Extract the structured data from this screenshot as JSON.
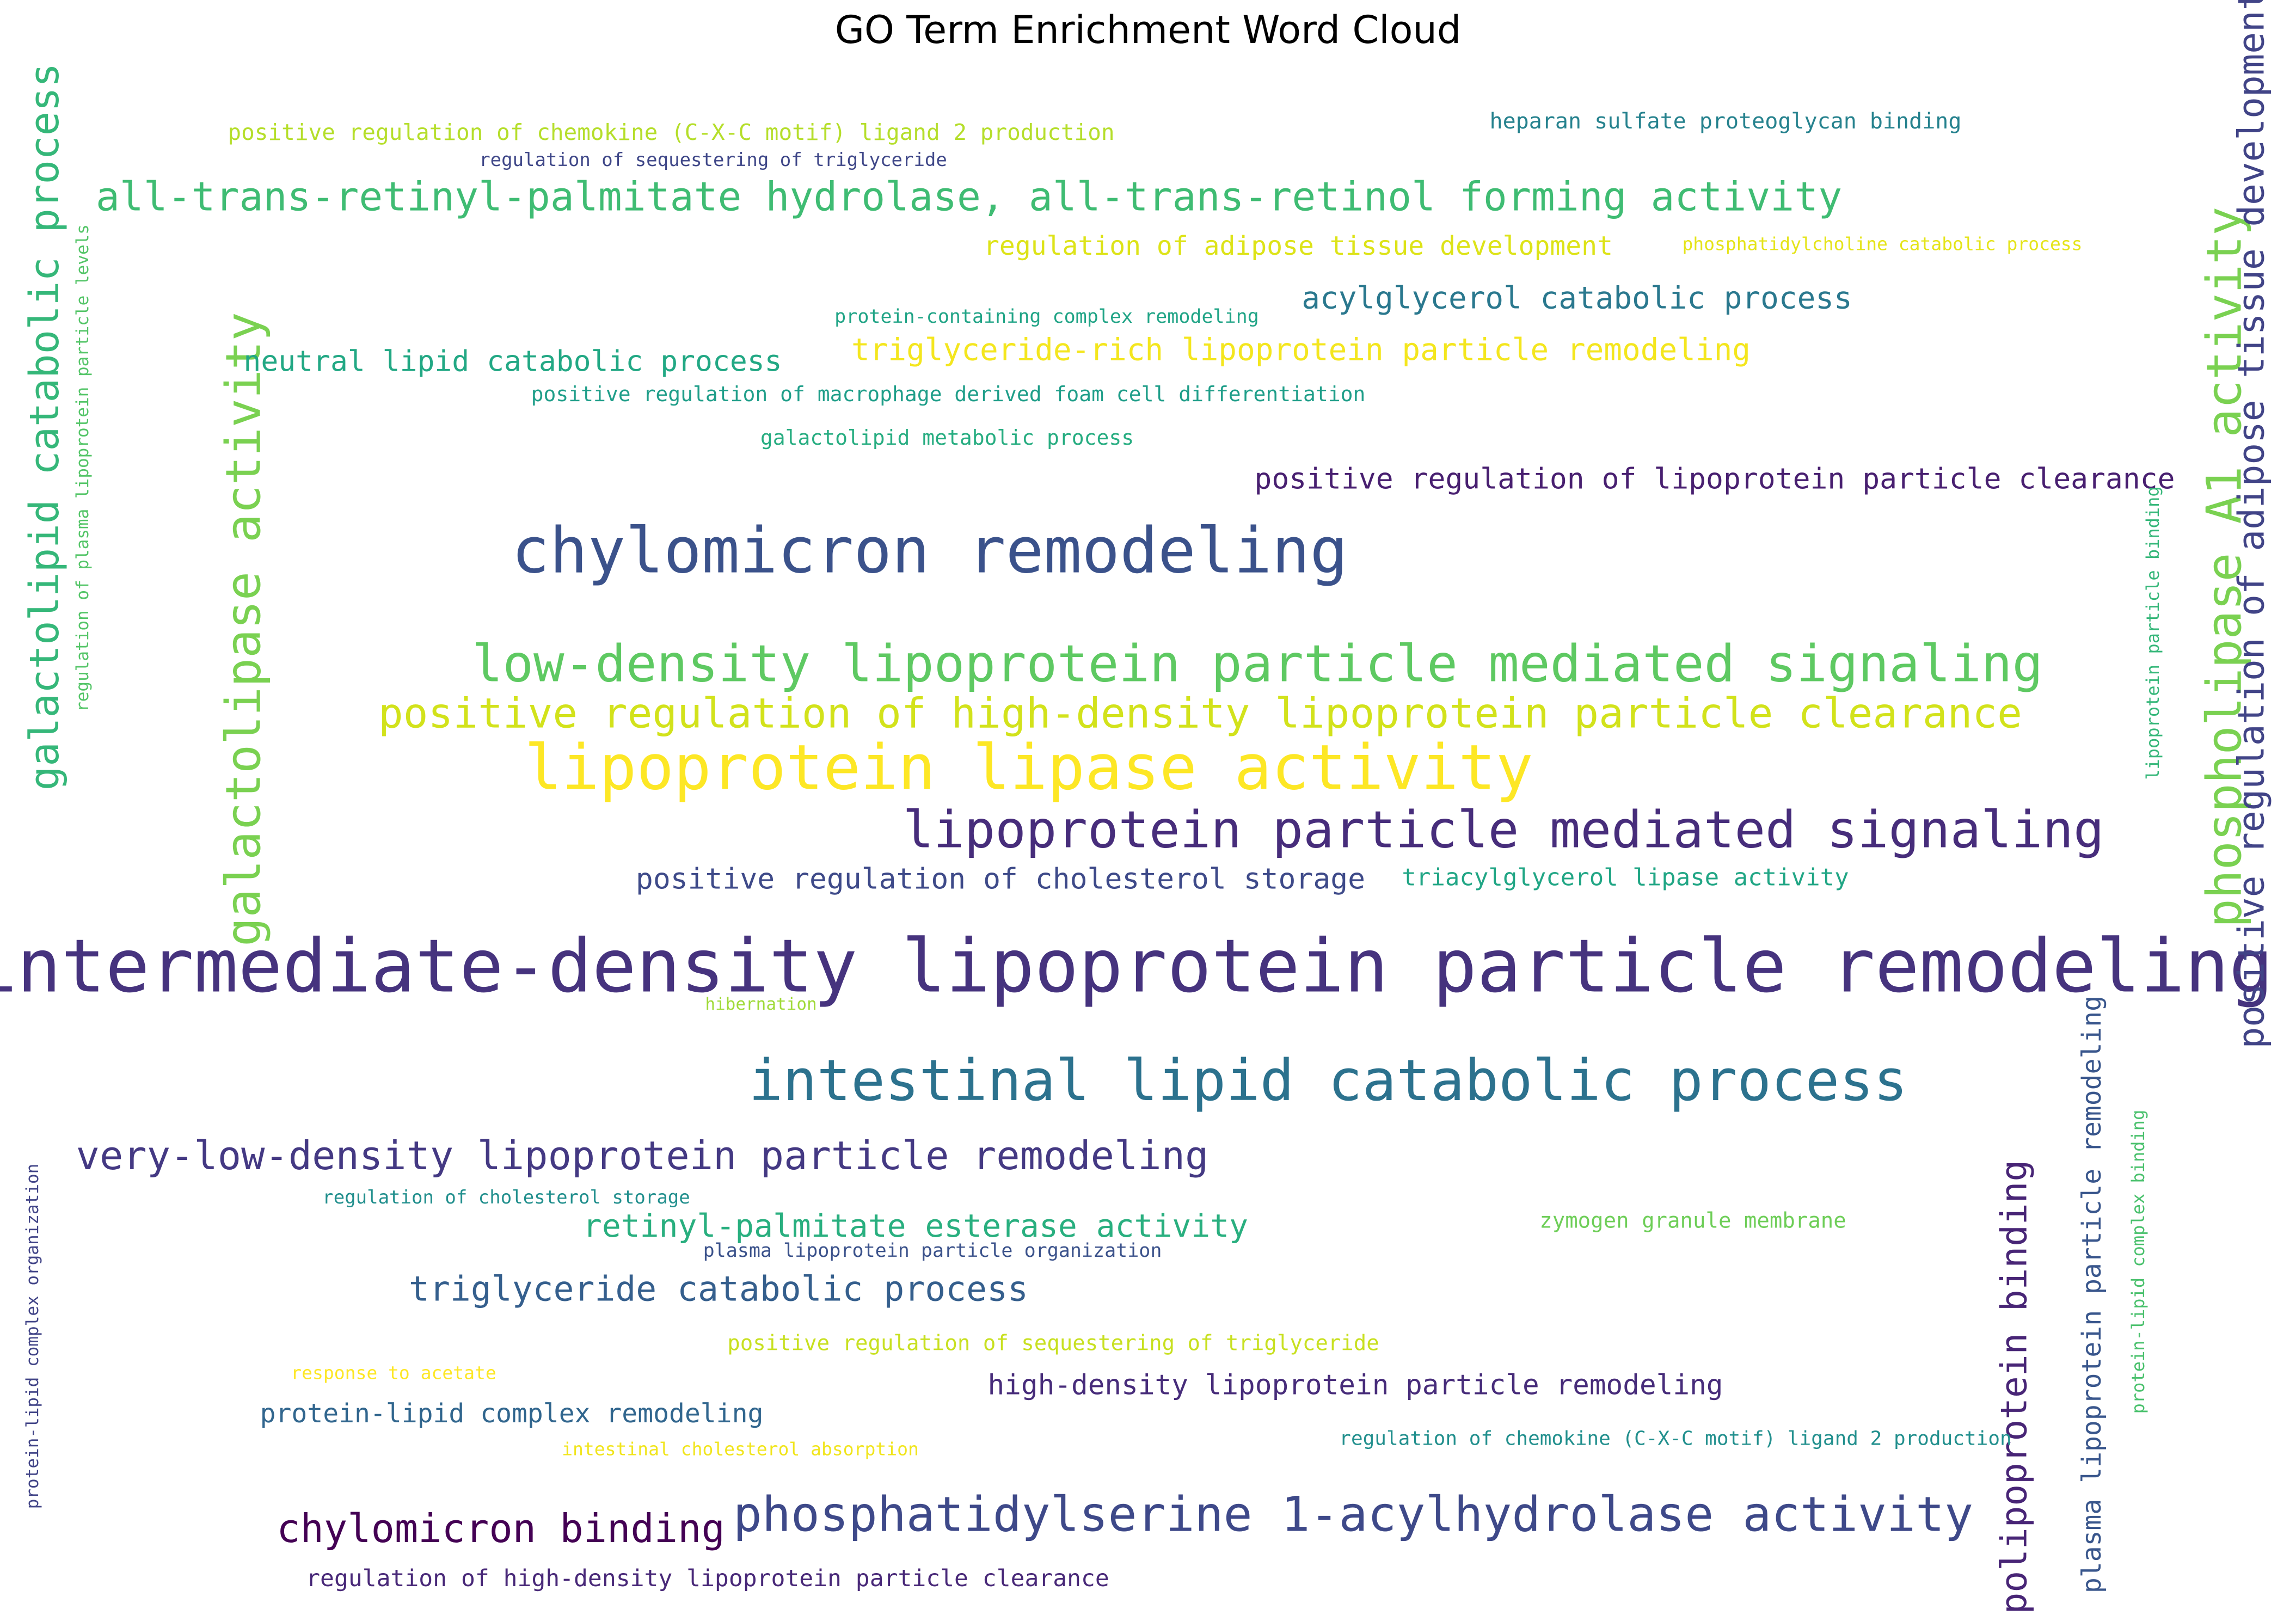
{
  "chart_data": {
    "type": "word_cloud",
    "title": "GO Term Enrichment Word Cloud",
    "colormap": "viridis",
    "words": [
      {
        "text": "intermediate-density lipoprotein particle remodeling",
        "weight": 1.0,
        "orientation": "horizontal",
        "color": "#46337e"
      },
      {
        "text": "chylomicron remodeling",
        "weight": 0.86,
        "orientation": "horizontal",
        "color": "#3b528b"
      },
      {
        "text": "lipoprotein lipase activity",
        "weight": 0.84,
        "orientation": "horizontal",
        "color": "#fde725"
      },
      {
        "text": "intestinal lipid catabolic process",
        "weight": 0.78,
        "orientation": "horizontal",
        "color": "#2c728e"
      },
      {
        "text": "low-density lipoprotein particle mediated signaling",
        "weight": 0.7,
        "orientation": "horizontal",
        "color": "#5ec962"
      },
      {
        "text": "lipoprotein particle mediated signaling",
        "weight": 0.7,
        "orientation": "horizontal",
        "color": "#472d7b"
      },
      {
        "text": "galactolipase activity",
        "weight": 0.66,
        "orientation": "vertical",
        "color": "#7ad151"
      },
      {
        "text": "phospholipase A1 activity",
        "weight": 0.66,
        "orientation": "vertical",
        "color": "#7ad151"
      },
      {
        "text": "phosphatidylserine 1-acylhydrolase activity",
        "weight": 0.66,
        "orientation": "horizontal",
        "color": "#3e4989"
      },
      {
        "text": "positive regulation of high-density lipoprotein particle clearance",
        "weight": 0.58,
        "orientation": "horizontal",
        "color": "#d2e21b"
      },
      {
        "text": "galactolipid catabolic process",
        "weight": 0.56,
        "orientation": "vertical",
        "color": "#35b779"
      },
      {
        "text": "all-trans-retinyl-palmitate hydrolase, all-trans-retinol forming activity",
        "weight": 0.55,
        "orientation": "horizontal",
        "color": "#3fbc73"
      },
      {
        "text": "very-low-density lipoprotein particle remodeling",
        "weight": 0.54,
        "orientation": "horizontal",
        "color": "#443983"
      },
      {
        "text": "chylomicron binding",
        "weight": 0.54,
        "orientation": "horizontal",
        "color": "#440154"
      },
      {
        "text": "positive regulation of adipose tissue development",
        "weight": 0.5,
        "orientation": "vertical",
        "color": "#414487"
      },
      {
        "text": "apolipoprotein binding",
        "weight": 0.5,
        "orientation": "vertical",
        "color": "#482576"
      },
      {
        "text": "triglyceride catabolic process",
        "weight": 0.48,
        "orientation": "horizontal",
        "color": "#355f8d"
      },
      {
        "text": "retinyl-palmitate esterase activity",
        "weight": 0.44,
        "orientation": "horizontal",
        "color": "#29af7f"
      },
      {
        "text": "acylglycerol catabolic process",
        "weight": 0.42,
        "orientation": "horizontal",
        "color": "#2a788e"
      },
      {
        "text": "triglyceride-rich lipoprotein particle remodeling",
        "weight": 0.42,
        "orientation": "horizontal",
        "color": "#f4e61e"
      },
      {
        "text": "positive regulation of lipoprotein particle clearance",
        "weight": 0.4,
        "orientation": "horizontal",
        "color": "#481f70"
      },
      {
        "text": "positive regulation of cholesterol storage",
        "weight": 0.4,
        "orientation": "horizontal",
        "color": "#3e4a89"
      },
      {
        "text": "neutral lipid catabolic process",
        "weight": 0.4,
        "orientation": "horizontal",
        "color": "#22a884"
      },
      {
        "text": "high-density lipoprotein particle remodeling",
        "weight": 0.39,
        "orientation": "horizontal",
        "color": "#472c7a"
      },
      {
        "text": "plasma lipoprotein particle remodeling",
        "weight": 0.38,
        "orientation": "vertical",
        "color": "#39568c"
      },
      {
        "text": "protein-lipid complex remodeling",
        "weight": 0.37,
        "orientation": "horizontal",
        "color": "#31668e"
      },
      {
        "text": "regulation of adipose tissue development",
        "weight": 0.36,
        "orientation": "horizontal",
        "color": "#dde318"
      },
      {
        "text": "triacylglycerol lipase activity",
        "weight": 0.35,
        "orientation": "horizontal",
        "color": "#21a685"
      },
      {
        "text": "regulation of high-density lipoprotein particle clearance",
        "weight": 0.33,
        "orientation": "horizontal",
        "color": "#482878"
      },
      {
        "text": "positive regulation of chemokine (C-X-C motif) ligand 2 production",
        "weight": 0.32,
        "orientation": "horizontal",
        "color": "#b5de2b"
      },
      {
        "text": "heparan sulfate proteoglycan binding",
        "weight": 0.3,
        "orientation": "horizontal",
        "color": "#26828e"
      },
      {
        "text": "zymogen granule membrane",
        "weight": 0.3,
        "orientation": "horizontal",
        "color": "#6ece58"
      },
      {
        "text": "positive regulation of sequestering of triglyceride",
        "weight": 0.3,
        "orientation": "horizontal",
        "color": "#c8e020"
      },
      {
        "text": "positive regulation of macrophage derived foam cell differentiation",
        "weight": 0.29,
        "orientation": "horizontal",
        "color": "#1f9e89"
      },
      {
        "text": "galactolipid metabolic process",
        "weight": 0.29,
        "orientation": "horizontal",
        "color": "#27ad81"
      },
      {
        "text": "regulation of chemokine (C-X-C motif) ligand 2 production",
        "weight": 0.28,
        "orientation": "horizontal",
        "color": "#218f8d"
      },
      {
        "text": "plasma lipoprotein particle organization",
        "weight": 0.27,
        "orientation": "horizontal",
        "color": "#3b528b"
      },
      {
        "text": "protein-containing complex remodeling",
        "weight": 0.27,
        "orientation": "horizontal",
        "color": "#20a486"
      },
      {
        "text": "regulation of sequestering of triglyceride",
        "weight": 0.27,
        "orientation": "horizontal",
        "color": "#3f4788"
      },
      {
        "text": "regulation of cholesterol storage",
        "weight": 0.27,
        "orientation": "horizontal",
        "color": "#218f8d"
      },
      {
        "text": "phosphatidylcholine catabolic process",
        "weight": 0.26,
        "orientation": "horizontal",
        "color": "#e5e419"
      },
      {
        "text": "protein-lipid complex binding",
        "weight": 0.26,
        "orientation": "vertical",
        "color": "#4ac16d"
      },
      {
        "text": "lipoprotein particle binding",
        "weight": 0.26,
        "orientation": "vertical",
        "color": "#35b779"
      },
      {
        "text": "regulation of plasma lipoprotein particle levels",
        "weight": 0.25,
        "orientation": "vertical",
        "color": "#54c568"
      },
      {
        "text": "protein-lipid complex organization",
        "weight": 0.26,
        "orientation": "vertical",
        "color": "#414487"
      },
      {
        "text": "response to acetate",
        "weight": 0.26,
        "orientation": "horizontal",
        "color": "#fde725"
      },
      {
        "text": "intestinal cholesterol absorption",
        "weight": 0.26,
        "orientation": "horizontal",
        "color": "#f1e51d"
      },
      {
        "text": "hibernation",
        "weight": 0.25,
        "orientation": "horizontal",
        "color": "#a0da39"
      }
    ]
  }
}
